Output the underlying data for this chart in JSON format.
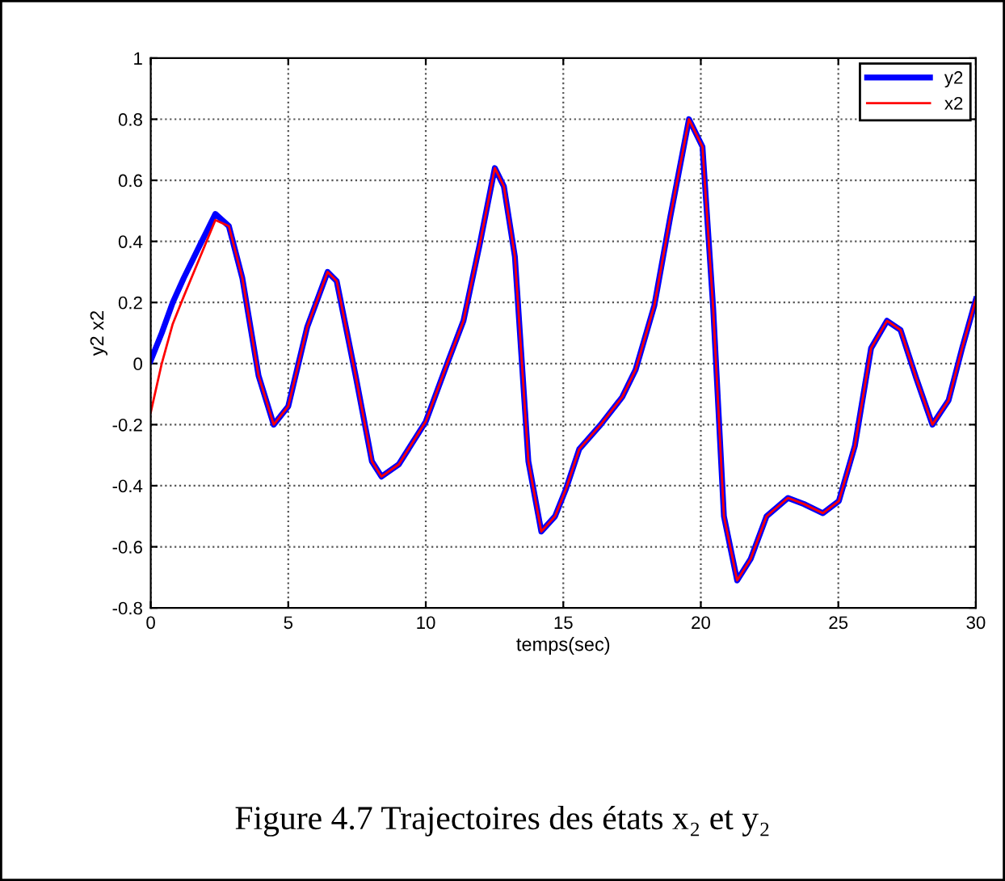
{
  "chart_data": {
    "type": "line",
    "xlabel": "temps(sec)",
    "ylabel": "y2 x2",
    "x": [
      0,
      0.4,
      0.8,
      1.2,
      1.8,
      2.35,
      2.84,
      3.33,
      3.92,
      4.47,
      5.0,
      5.69,
      6.43,
      6.76,
      7.45,
      8.04,
      8.39,
      9.02,
      10,
      10.78,
      11.37,
      11.96,
      12.51,
      12.84,
      13.24,
      13.73,
      14.2,
      14.7,
      15.1,
      15.58,
      16.36,
      17.14,
      17.63,
      18.31,
      18.89,
      19.57,
      20.06,
      20.45,
      20.84,
      21.32,
      21.81,
      22.39,
      23.17,
      23.75,
      24.44,
      25.02,
      25.6,
      26.19,
      26.77,
      27.26,
      27.84,
      28.42,
      29.01,
      29.5,
      30
    ],
    "series": [
      {
        "name": "y2",
        "color": "#0000ff",
        "values": [
          0.01,
          0.1,
          0.2,
          0.28,
          0.39,
          0.49,
          0.45,
          0.28,
          -0.04,
          -0.2,
          -0.14,
          0.12,
          0.3,
          0.27,
          -0.04,
          -0.32,
          -0.37,
          -0.33,
          -0.19,
          0.0,
          0.14,
          0.39,
          0.64,
          0.58,
          0.35,
          -0.32,
          -0.55,
          -0.5,
          -0.41,
          -0.28,
          -0.2,
          -0.11,
          -0.02,
          0.19,
          0.48,
          0.8,
          0.71,
          0.18,
          -0.5,
          -0.71,
          -0.64,
          -0.5,
          -0.44,
          -0.46,
          -0.49,
          -0.45,
          -0.27,
          0.05,
          0.14,
          0.11,
          -0.05,
          -0.2,
          -0.12,
          0.05,
          0.21
        ]
      },
      {
        "name": "x2",
        "color": "#ff0000",
        "values": [
          -0.16,
          0.0,
          0.13,
          0.22,
          0.35,
          0.47,
          0.45,
          0.28,
          -0.04,
          -0.2,
          -0.14,
          0.12,
          0.3,
          0.27,
          -0.04,
          -0.32,
          -0.37,
          -0.33,
          -0.19,
          0.0,
          0.14,
          0.39,
          0.64,
          0.58,
          0.35,
          -0.32,
          -0.55,
          -0.5,
          -0.41,
          -0.28,
          -0.2,
          -0.11,
          -0.02,
          0.19,
          0.48,
          0.8,
          0.71,
          0.18,
          -0.5,
          -0.71,
          -0.64,
          -0.5,
          -0.44,
          -0.46,
          -0.49,
          -0.45,
          -0.27,
          0.05,
          0.14,
          0.11,
          -0.05,
          -0.2,
          -0.12,
          0.05,
          0.21
        ]
      }
    ],
    "xlim": [
      0,
      30
    ],
    "xticks": [
      0,
      5,
      10,
      15,
      20,
      25,
      30
    ],
    "ylim": [
      -0.8,
      1
    ],
    "yticks": [
      {
        "value": -0.8,
        "label": "-0.8"
      },
      {
        "value": -0.6,
        "label": "-0.6"
      },
      {
        "value": -0.4,
        "label": "-0.4"
      },
      {
        "value": -0.2,
        "label": "-0.2"
      },
      0,
      0.2,
      0.4,
      0.6,
      0.8,
      1
    ],
    "grid": true,
    "legend": "top right",
    "line_style": "solid",
    "marker": "none",
    "annotations": [
      "Figure 4.7 Trajectoires des états x₂ et y₂"
    ]
  }
}
